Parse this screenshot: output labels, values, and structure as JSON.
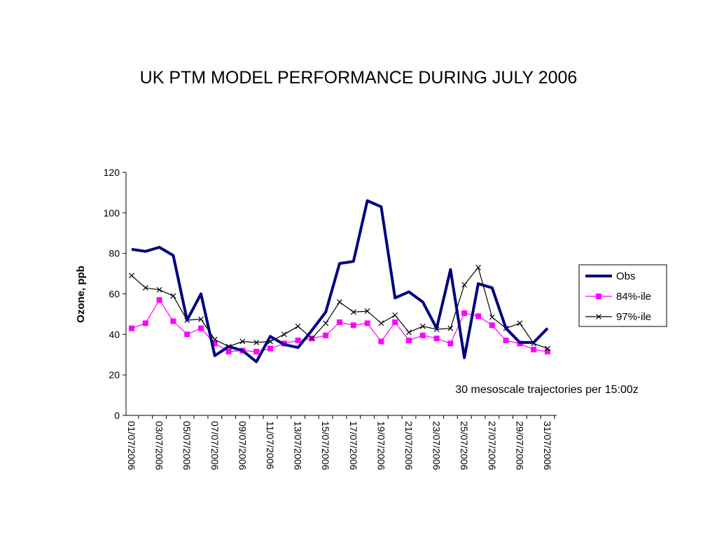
{
  "chart_data": {
    "type": "line",
    "title": "UK PTM MODEL PERFORMANCE DURING JULY 2006",
    "xlabel": "",
    "ylabel": "Ozone, ppb",
    "ylim": [
      0,
      120
    ],
    "yticks": [
      0,
      20,
      40,
      60,
      80,
      100,
      120
    ],
    "grid": false,
    "legend_position": "right",
    "x": [
      "01/07/2006",
      "02/07/2006",
      "03/07/2006",
      "04/07/2006",
      "05/07/2006",
      "06/07/2006",
      "07/07/2006",
      "08/07/2006",
      "09/07/2006",
      "10/07/2006",
      "11/07/2006",
      "12/07/2006",
      "13/07/2006",
      "14/07/2006",
      "15/07/2006",
      "16/07/2006",
      "17/07/2006",
      "18/07/2006",
      "19/07/2006",
      "20/07/2006",
      "21/07/2006",
      "22/07/2006",
      "23/07/2006",
      "24/07/2006",
      "25/07/2006",
      "26/07/2006",
      "27/07/2006",
      "28/07/2006",
      "29/07/2006",
      "30/07/2006",
      "31/07/2006"
    ],
    "xtick_labels": [
      "01/07/2006",
      "03/07/2006",
      "05/07/2006",
      "07/07/2006",
      "09/07/2006",
      "11/07/2006",
      "13/07/2006",
      "15/07/2006",
      "17/07/2006",
      "19/07/2006",
      "21/07/2006",
      "23/07/2006",
      "25/07/2006",
      "27/07/2006",
      "29/07/2006",
      "31/07/2006"
    ],
    "series": [
      {
        "name": "Obs",
        "color": "#000080",
        "marker": "none",
        "values": [
          82,
          81,
          83,
          79,
          47,
          60,
          29.5,
          34,
          32,
          26.5,
          39,
          35,
          33.5,
          42,
          51,
          75,
          76,
          106,
          103,
          58,
          61,
          56,
          43,
          72,
          28.5,
          65,
          63,
          43,
          36,
          36,
          43
        ]
      },
      {
        "name": "84%-ile",
        "color": "#ff00ff",
        "marker": "square",
        "values": [
          43,
          45.5,
          57,
          46.5,
          40,
          43,
          35.5,
          31.5,
          32,
          31.5,
          33,
          35.5,
          37,
          38,
          39.5,
          46,
          44.5,
          45.5,
          36.5,
          46,
          37,
          39.5,
          38,
          35.5,
          50.5,
          49,
          44.5,
          37,
          35.5,
          32.5,
          31.5
        ]
      },
      {
        "name": "97%-ile",
        "color": "#000000",
        "marker": "x",
        "values": [
          69,
          63,
          62,
          59,
          47,
          47.5,
          37.5,
          34,
          36.5,
          36,
          36.5,
          40,
          44,
          38,
          45.5,
          56,
          51,
          51.5,
          45.5,
          49.5,
          41,
          44,
          42.5,
          43,
          64.5,
          73,
          48.5,
          43,
          45.5,
          35.5,
          33
        ]
      }
    ],
    "annotation": "30 mesoscale trajectories per 15:00z"
  }
}
